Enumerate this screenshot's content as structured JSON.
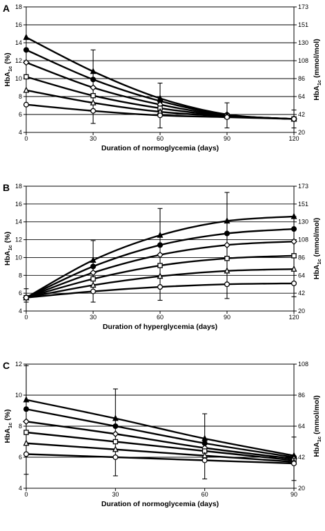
{
  "chart_data": [
    {
      "panel": "A",
      "type": "line",
      "xlabel": "Duration of normoglycemia (days)",
      "ylabel_left": "HbA1c (%)",
      "ylabel_right": "HbA1c (mmol/mol)",
      "x_ticks": [
        0,
        30,
        60,
        90,
        120
      ],
      "xlim": [
        0,
        120
      ],
      "ylim": [
        4,
        18
      ],
      "y_ticks": [
        4,
        6,
        8,
        10,
        12,
        14,
        16,
        18
      ],
      "right_ticks": [
        {
          "value": 4,
          "label": "20"
        },
        {
          "value": 6,
          "label": "42"
        },
        {
          "value": 8,
          "label": "64"
        },
        {
          "value": 10,
          "label": "86"
        },
        {
          "value": 12,
          "label": "108"
        },
        {
          "value": 14,
          "label": "130"
        },
        {
          "value": 16,
          "label": "151"
        },
        {
          "value": 18,
          "label": "173"
        }
      ],
      "grid": true,
      "series": [
        {
          "marker": "triangle-filled",
          "x": [
            0,
            30,
            60,
            90,
            120
          ],
          "y": [
            14.6,
            10.8,
            7.8,
            6.0,
            5.5
          ]
        },
        {
          "marker": "circle-filled",
          "x": [
            0,
            30,
            60,
            90,
            120
          ],
          "y": [
            13.2,
            9.9,
            7.5,
            5.95,
            5.5
          ]
        },
        {
          "marker": "diamond-open",
          "x": [
            0,
            30,
            60,
            90,
            120
          ],
          "y": [
            11.8,
            9.0,
            7.1,
            5.9,
            5.5
          ]
        },
        {
          "marker": "square-open",
          "x": [
            0,
            30,
            60,
            90,
            120
          ],
          "y": [
            10.2,
            8.1,
            6.7,
            5.85,
            5.5
          ]
        },
        {
          "marker": "triangle-open",
          "x": [
            0,
            30,
            60,
            90,
            120
          ],
          "y": [
            8.7,
            7.3,
            6.3,
            5.8,
            5.5
          ]
        },
        {
          "marker": "circle-open",
          "x": [
            0,
            30,
            60,
            90,
            120
          ],
          "y": [
            7.1,
            6.4,
            5.9,
            5.7,
            5.5
          ]
        }
      ],
      "error_bars": [
        {
          "x": 30,
          "low": 5.0,
          "high": 13.2
        },
        {
          "x": 60,
          "low": 4.5,
          "high": 9.5
        },
        {
          "x": 90,
          "low": 4.5,
          "high": 7.3
        },
        {
          "x": 120,
          "low": 4.5,
          "high": 6.5
        }
      ]
    },
    {
      "panel": "B",
      "type": "line",
      "xlabel": "Duration of hyperglycemia (days)",
      "ylabel_left": "HbA1c (%)",
      "ylabel_right": "HbA1c (mmol/mol)",
      "x_ticks": [
        0,
        30,
        60,
        90,
        120
      ],
      "xlim": [
        0,
        120
      ],
      "ylim": [
        4,
        18
      ],
      "y_ticks": [
        4,
        6,
        8,
        10,
        12,
        14,
        16,
        18
      ],
      "right_ticks": [
        {
          "value": 4,
          "label": "20"
        },
        {
          "value": 6,
          "label": "42"
        },
        {
          "value": 8,
          "label": "64"
        },
        {
          "value": 10,
          "label": "86"
        },
        {
          "value": 12,
          "label": "108"
        },
        {
          "value": 14,
          "label": "130"
        },
        {
          "value": 16,
          "label": "151"
        },
        {
          "value": 18,
          "label": "173"
        }
      ],
      "grid": true,
      "series": [
        {
          "marker": "triangle-filled",
          "x": [
            0,
            30,
            60,
            90,
            120
          ],
          "y": [
            5.5,
            9.7,
            12.5,
            14.1,
            14.6
          ]
        },
        {
          "marker": "circle-filled",
          "x": [
            0,
            30,
            60,
            90,
            120
          ],
          "y": [
            5.5,
            9.0,
            11.4,
            12.7,
            13.2
          ]
        },
        {
          "marker": "diamond-open",
          "x": [
            0,
            30,
            60,
            90,
            120
          ],
          "y": [
            5.5,
            8.3,
            10.3,
            11.4,
            11.8
          ]
        },
        {
          "marker": "square-open",
          "x": [
            0,
            30,
            60,
            90,
            120
          ],
          "y": [
            5.5,
            7.6,
            9.1,
            9.9,
            10.2
          ]
        },
        {
          "marker": "triangle-open",
          "x": [
            0,
            30,
            60,
            90,
            120
          ],
          "y": [
            5.5,
            6.9,
            7.9,
            8.5,
            8.7
          ]
        },
        {
          "marker": "circle-open",
          "x": [
            0,
            30,
            60,
            90,
            120
          ],
          "y": [
            5.5,
            6.2,
            6.7,
            7.0,
            7.1
          ]
        }
      ],
      "error_bars": [
        {
          "x": 0,
          "low": 5.0,
          "high": 6.5
        },
        {
          "x": 30,
          "low": 5.0,
          "high": 11.9
        },
        {
          "x": 60,
          "low": 5.2,
          "high": 15.5
        },
        {
          "x": 90,
          "low": 5.4,
          "high": 17.3
        },
        {
          "x": 120,
          "low": 5.6,
          "high": 14.6
        }
      ]
    },
    {
      "panel": "C",
      "type": "line",
      "xlabel": "Duration of normoglycemia   (days)",
      "ylabel_left": "HbA1c (%)",
      "ylabel_right": "HbA1c (mmol/mol)",
      "x_ticks": [
        0,
        30,
        60,
        90
      ],
      "xlim": [
        0,
        90
      ],
      "ylim": [
        4,
        12
      ],
      "y_ticks": [
        4,
        6,
        8,
        10,
        12
      ],
      "right_ticks": [
        {
          "value": 4,
          "label": "20"
        },
        {
          "value": 6,
          "label": "42"
        },
        {
          "value": 8,
          "label": "64"
        },
        {
          "value": 10,
          "label": "86"
        },
        {
          "value": 12,
          "label": "108"
        }
      ],
      "grid": true,
      "series": [
        {
          "marker": "triangle-filled",
          "x": [
            0,
            30,
            60,
            90
          ],
          "y": [
            9.7,
            8.5,
            7.2,
            6.1
          ]
        },
        {
          "marker": "circle-filled",
          "x": [
            0,
            30,
            60,
            90
          ],
          "y": [
            9.1,
            8.0,
            6.9,
            6.0
          ]
        },
        {
          "marker": "diamond-open",
          "x": [
            0,
            30,
            60,
            90
          ],
          "y": [
            8.3,
            7.5,
            6.6,
            5.9
          ]
        },
        {
          "marker": "square-open",
          "x": [
            0,
            30,
            60,
            90
          ],
          "y": [
            7.6,
            7.0,
            6.4,
            5.8
          ]
        },
        {
          "marker": "triangle-open",
          "x": [
            0,
            30,
            60,
            90
          ],
          "y": [
            6.9,
            6.5,
            6.1,
            5.7
          ]
        },
        {
          "marker": "circle-open",
          "x": [
            0,
            30,
            60,
            90
          ],
          "y": [
            6.2,
            6.0,
            5.8,
            5.6
          ]
        }
      ],
      "error_bars": [
        {
          "x": 0,
          "low": 4.9,
          "high": 11.9
        },
        {
          "x": 30,
          "low": 4.8,
          "high": 10.4
        },
        {
          "x": 60,
          "low": 4.6,
          "high": 8.8
        },
        {
          "x": 90,
          "low": 4.5,
          "high": 7.3
        }
      ]
    }
  ]
}
